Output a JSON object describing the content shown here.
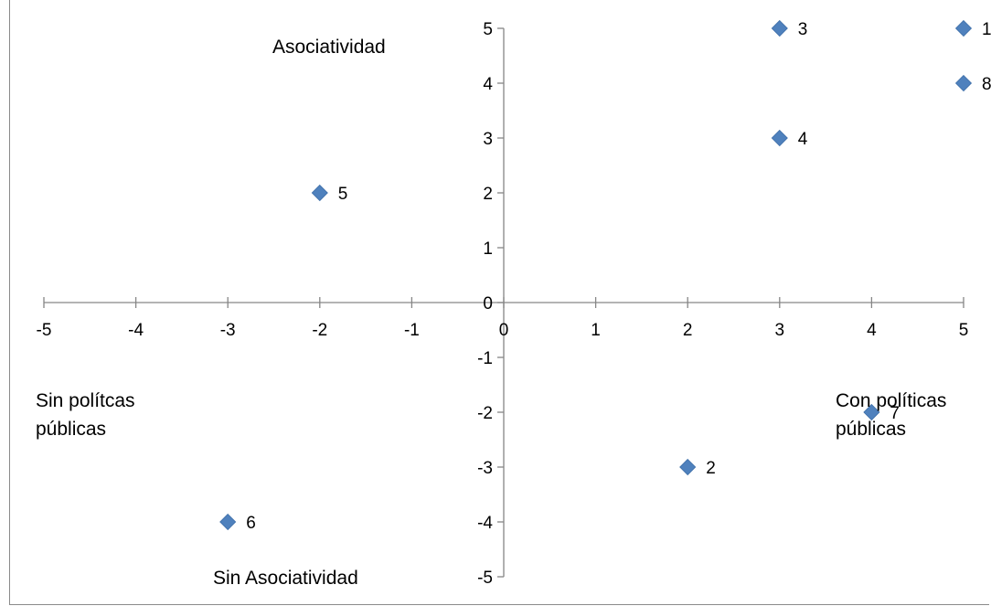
{
  "chart_data": {
    "type": "scatter",
    "title": "",
    "xlabel": "",
    "ylabel": "",
    "xlim": [
      -5,
      5
    ],
    "ylim": [
      -5,
      5
    ],
    "x_ticks": [
      -5,
      -4,
      -3,
      -2,
      -1,
      0,
      1,
      2,
      3,
      4,
      5
    ],
    "y_ticks": [
      5,
      4,
      3,
      2,
      1,
      0,
      -1,
      -2,
      -3,
      -4,
      -5
    ],
    "grid": false,
    "legend": "none",
    "marker": "diamond",
    "marker_color": "#4F81BD",
    "axis_color": "#868686",
    "points": [
      {
        "label": "1",
        "x": 5,
        "y": 5
      },
      {
        "label": "2",
        "x": 2,
        "y": -3
      },
      {
        "label": "3",
        "x": 3,
        "y": 5
      },
      {
        "label": "4",
        "x": 3,
        "y": 3
      },
      {
        "label": "5",
        "x": -2,
        "y": 2
      },
      {
        "label": "6",
        "x": -3,
        "y": -4
      },
      {
        "label": "7",
        "x": 4,
        "y": -2
      },
      {
        "label": "8",
        "x": 5,
        "y": 4
      }
    ],
    "annotations": {
      "top": "Asociatividad",
      "bottom": "Sin Asociatividad",
      "left": [
        "Sin  polítcas",
        "públicas"
      ],
      "right": [
        "Con  políticas",
        "públicas"
      ]
    }
  }
}
